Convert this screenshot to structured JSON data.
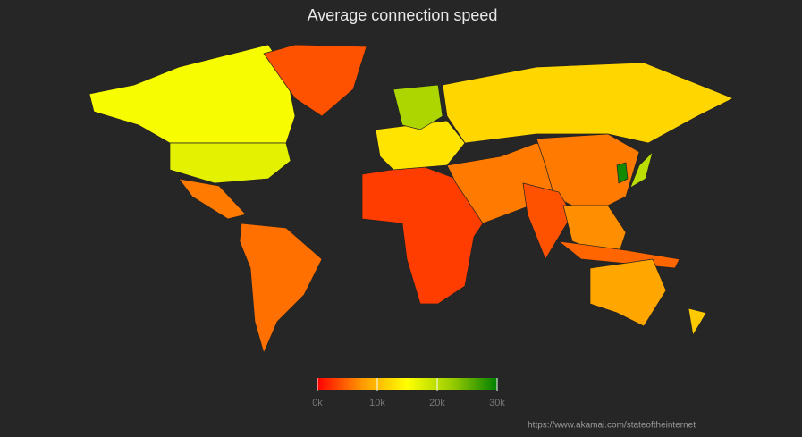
{
  "chart_data": {
    "type": "choropleth",
    "title": "Average connection speed",
    "values": [
      15500,
      17000,
      6000,
      4000,
      5500,
      3000,
      13000,
      21000,
      12000,
      6000,
      6000,
      4000,
      7000,
      5000,
      8500,
      20000,
      29000,
      11000
    ],
    "colorbar": {
      "lim": [
        0,
        30000
      ],
      "colors": [
        "#ff0000",
        "#ff9900",
        "#ffff00",
        "#99cc00",
        "#008000"
      ],
      "ticks": [
        {
          "value": 0,
          "label": "0k"
        },
        {
          "value": 10000,
          "label": "10k"
        },
        {
          "value": 20000,
          "label": "20k"
        },
        {
          "value": 30000,
          "label": "30k"
        }
      ]
    },
    "source": "https://www.akamai.com/stateoftheinternet"
  }
}
